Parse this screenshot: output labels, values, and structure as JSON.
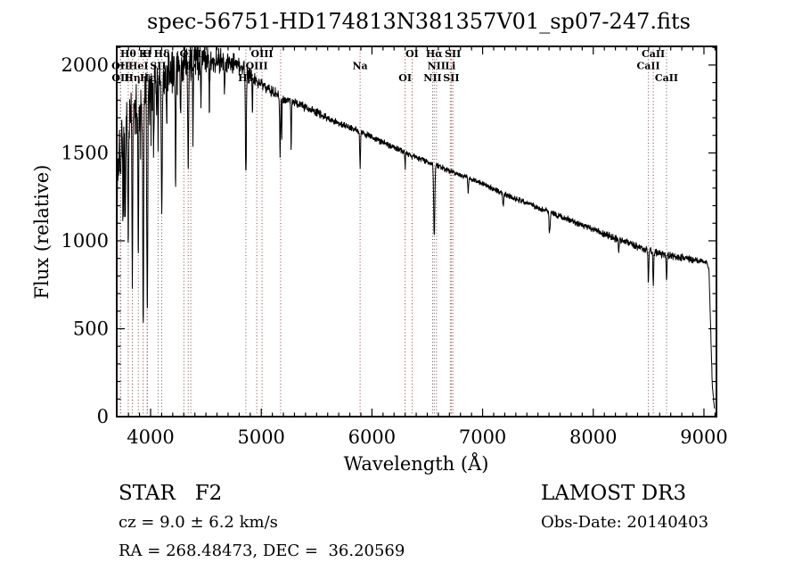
{
  "title": "spec-56751-HD174813N381357V01_sp07-247.fits",
  "annotations": {
    "class_line": "STAR   F2",
    "cz_line": "cz = 9.0 ± 6.2 km/s",
    "radec_line": "RA = 268.48473, DEC =  36.20569",
    "survey_line": "LAMOST DR3",
    "obsdate_line": "Obs-Date: 20140403"
  },
  "chart_data": {
    "type": "line",
    "title": "spec-56751-HD174813N381357V01_sp07-247.fits",
    "xlabel": "Wavelength (Å)",
    "ylabel": "Flux (relative)",
    "xlim": [
      3694,
      9113
    ],
    "ylim": [
      0,
      2106
    ],
    "x_ticks": [
      4000,
      5000,
      6000,
      7000,
      8000,
      9000
    ],
    "y_ticks": [
      0,
      500,
      1000,
      1500,
      2000
    ],
    "x_minor_step": 100,
    "y_minor_step": 100,
    "grid": false,
    "legend": null,
    "line_color": "#000000",
    "marker_color": "#9e3b32",
    "noise_seed": 7,
    "continuum": [
      [
        3694,
        250
      ],
      [
        3700,
        1350
      ],
      [
        3720,
        1550
      ],
      [
        3760,
        1650
      ],
      [
        3800,
        1700
      ],
      [
        3850,
        1720
      ],
      [
        3900,
        1780
      ],
      [
        3950,
        1830
      ],
      [
        4000,
        1870
      ],
      [
        4100,
        1920
      ],
      [
        4200,
        1970
      ],
      [
        4300,
        2010
      ],
      [
        4400,
        2030
      ],
      [
        4500,
        2045
      ],
      [
        4600,
        2035
      ],
      [
        4700,
        2020
      ],
      [
        4800,
        1995
      ],
      [
        4900,
        1950
      ],
      [
        5000,
        1890
      ],
      [
        5100,
        1850
      ],
      [
        5200,
        1810
      ],
      [
        5300,
        1785
      ],
      [
        5400,
        1760
      ],
      [
        5500,
        1730
      ],
      [
        5600,
        1700
      ],
      [
        5700,
        1670
      ],
      [
        5800,
        1645
      ],
      [
        5900,
        1620
      ],
      [
        6000,
        1590
      ],
      [
        6100,
        1560
      ],
      [
        6200,
        1530
      ],
      [
        6300,
        1505
      ],
      [
        6400,
        1475
      ],
      [
        6500,
        1450
      ],
      [
        6600,
        1425
      ],
      [
        6700,
        1400
      ],
      [
        6800,
        1375
      ],
      [
        6900,
        1350
      ],
      [
        7000,
        1325
      ],
      [
        7100,
        1295
      ],
      [
        7200,
        1265
      ],
      [
        7300,
        1240
      ],
      [
        7400,
        1215
      ],
      [
        7500,
        1190
      ],
      [
        7600,
        1165
      ],
      [
        7700,
        1140
      ],
      [
        7800,
        1115
      ],
      [
        7900,
        1090
      ],
      [
        8000,
        1065
      ],
      [
        8100,
        1040
      ],
      [
        8200,
        1015
      ],
      [
        8300,
        995
      ],
      [
        8400,
        970
      ],
      [
        8500,
        945
      ],
      [
        8600,
        928
      ],
      [
        8700,
        915
      ],
      [
        8800,
        905
      ],
      [
        8900,
        893
      ],
      [
        8960,
        885
      ],
      [
        9020,
        878
      ],
      [
        9045,
        845
      ],
      [
        9060,
        520
      ],
      [
        9075,
        180
      ],
      [
        9097,
        30
      ]
    ],
    "absorption_lines": [
      [
        3727,
        250,
        4
      ],
      [
        3750,
        500,
        5
      ],
      [
        3771,
        550,
        5
      ],
      [
        3798,
        700,
        5
      ],
      [
        3835,
        950,
        5
      ],
      [
        3889,
        850,
        5
      ],
      [
        3933,
        1300,
        6
      ],
      [
        3970,
        1280,
        6
      ],
      [
        4026,
        350,
        4
      ],
      [
        4068,
        380,
        4
      ],
      [
        4101,
        780,
        6
      ],
      [
        4144,
        300,
        4
      ],
      [
        4226,
        620,
        4
      ],
      [
        4271,
        300,
        4
      ],
      [
        4340,
        580,
        6
      ],
      [
        4383,
        420,
        4
      ],
      [
        4455,
        280,
        4
      ],
      [
        4531,
        260,
        4
      ],
      [
        4668,
        220,
        4
      ],
      [
        4861,
        620,
        6
      ],
      [
        4920,
        200,
        4
      ],
      [
        5170,
        330,
        5
      ],
      [
        5185,
        260,
        3
      ],
      [
        5270,
        260,
        4
      ],
      [
        5893,
        210,
        5
      ],
      [
        6300,
        90,
        4
      ],
      [
        6563,
        410,
        7
      ],
      [
        6870,
        90,
        5
      ],
      [
        7186,
        70,
        6
      ],
      [
        7605,
        120,
        7
      ],
      [
        8230,
        70,
        6
      ],
      [
        8498,
        180,
        5
      ],
      [
        8542,
        190,
        5
      ],
      [
        8662,
        140,
        5
      ]
    ],
    "noise_amplitude": [
      [
        3694,
        180
      ],
      [
        4000,
        175
      ],
      [
        4200,
        140
      ],
      [
        4500,
        110
      ],
      [
        4800,
        70
      ],
      [
        5000,
        40
      ],
      [
        5300,
        33
      ],
      [
        5600,
        26
      ],
      [
        6000,
        24
      ],
      [
        6500,
        21
      ],
      [
        7000,
        20
      ],
      [
        7500,
        22
      ],
      [
        8000,
        24
      ],
      [
        8300,
        30
      ],
      [
        8700,
        28
      ],
      [
        9000,
        25
      ],
      [
        9050,
        15
      ],
      [
        9097,
        10
      ]
    ],
    "spectral_markers": [
      {
        "label": "OII",
        "wavelength": 3727,
        "row": 2
      },
      {
        "label": "OII",
        "wavelength": 3729,
        "row": 3
      },
      {
        "label": "Hθ",
        "wavelength": 3798,
        "row": 1
      },
      {
        "label": "Hη",
        "wavelength": 3835,
        "row": 3
      },
      {
        "label": "HeI",
        "wavelength": 3889,
        "row": 2
      },
      {
        "label": "K",
        "wavelength": 3933,
        "row": 1
      },
      {
        "label": "H",
        "wavelength": 3968,
        "row": 1
      },
      {
        "label": "Hε",
        "wavelength": 3971,
        "row": 3
      },
      {
        "label": "SII",
        "wavelength": 4068,
        "row": 2
      },
      {
        "label": "Hδ",
        "wavelength": 4101,
        "row": 1
      },
      {
        "label": "",
        "wavelength": 4300,
        "row": 0
      },
      {
        "label": "Hγ",
        "wavelength": 4340,
        "row": 2
      },
      {
        "label": "OIII",
        "wavelength": 4363,
        "row": 1
      },
      {
        "label": "Hβ",
        "wavelength": 4861,
        "row": 3
      },
      {
        "label": "OIII",
        "wavelength": 4959,
        "row": 2
      },
      {
        "label": "OIII",
        "wavelength": 5007,
        "row": 1
      },
      {
        "label": "",
        "wavelength": 5175,
        "row": 0
      },
      {
        "label": "Na",
        "wavelength": 5893,
        "row": 2
      },
      {
        "label": "OI",
        "wavelength": 6300,
        "row": 3
      },
      {
        "label": "OI",
        "wavelength": 6363,
        "row": 1
      },
      {
        "label": "NII",
        "wavelength": 6548,
        "row": 3
      },
      {
        "label": "Hα",
        "wavelength": 6563,
        "row": 1
      },
      {
        "label": "NII",
        "wavelength": 6583,
        "row": 2
      },
      {
        "label": "Li",
        "wavelength": 6708,
        "row": 2
      },
      {
        "label": "SII",
        "wavelength": 6717,
        "row": 3
      },
      {
        "label": "SII",
        "wavelength": 6731,
        "row": 1
      },
      {
        "label": "CaII",
        "wavelength": 8498,
        "row": 2
      },
      {
        "label": "CaII",
        "wavelength": 8542,
        "row": 1
      },
      {
        "label": "CaII",
        "wavelength": 8662,
        "row": 3
      }
    ]
  }
}
